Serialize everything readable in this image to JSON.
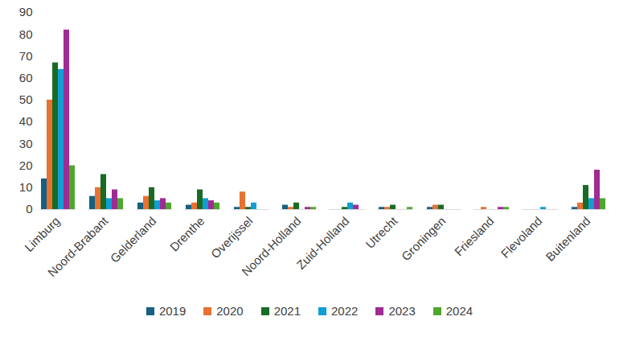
{
  "chart_data": {
    "type": "bar",
    "categories": [
      "Limburg",
      "Noord-Brabant",
      "Gelderland",
      "Drenthe",
      "Overijssel",
      "Noord-Holland",
      "Zuid-Holland",
      "Utrecht",
      "Groningen",
      "Friesland",
      "Flevoland",
      "Buitenland"
    ],
    "series": [
      {
        "name": "2019",
        "color": "#156082",
        "values": [
          14,
          6,
          3,
          2,
          1,
          2,
          0,
          1,
          1,
          0,
          0,
          1
        ]
      },
      {
        "name": "2020",
        "color": "#e97132",
        "values": [
          50,
          10,
          6,
          3,
          8,
          1,
          0,
          1,
          2,
          1,
          0,
          3
        ]
      },
      {
        "name": "2021",
        "color": "#196b24",
        "values": [
          67,
          16,
          10,
          9,
          1,
          3,
          1,
          2,
          2,
          0,
          0,
          11
        ]
      },
      {
        "name": "2022",
        "color": "#0f9ed5",
        "values": [
          64,
          5,
          4,
          5,
          3,
          0,
          3,
          0,
          0,
          0,
          1,
          5
        ]
      },
      {
        "name": "2023",
        "color": "#a02b93",
        "values": [
          82,
          9,
          5,
          4,
          0,
          1,
          2,
          0,
          0,
          1,
          0,
          18
        ]
      },
      {
        "name": "2024",
        "color": "#4ea72e",
        "values": [
          20,
          5,
          3,
          3,
          0,
          1,
          0,
          1,
          0,
          1,
          0,
          5
        ]
      }
    ],
    "ylim": [
      0,
      90
    ],
    "yticks": [
      0,
      10,
      20,
      30,
      40,
      50,
      60,
      70,
      80,
      90
    ],
    "grid": false,
    "legend": "bottom"
  }
}
